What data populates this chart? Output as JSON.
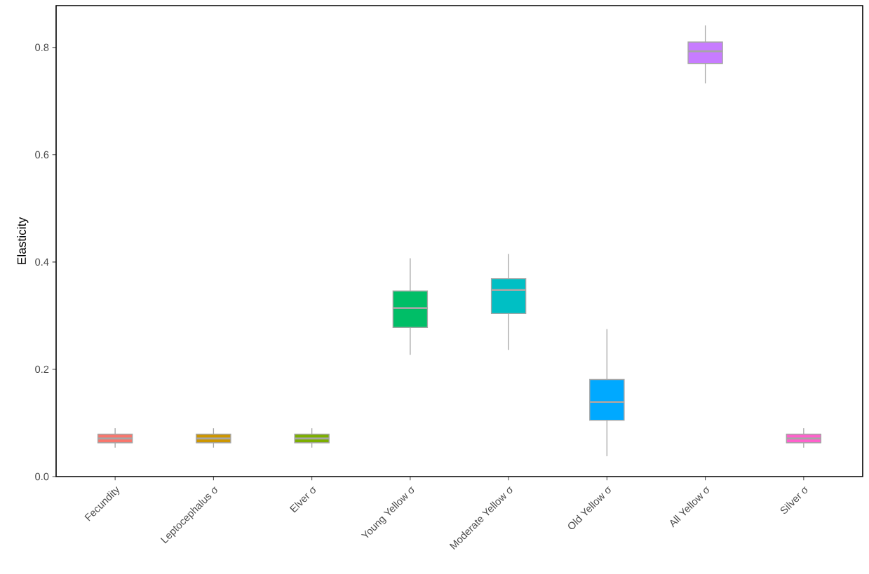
{
  "chart_data": {
    "type": "box",
    "ylabel": "Elasticity",
    "categories": [
      "Fecundity",
      "Leptocephalus σ",
      "Elver σ",
      "Young Yellow σ",
      "Moderate Yellow σ",
      "Old Yellow σ",
      "All Yellow σ",
      "Silver σ"
    ],
    "colors": [
      "#f8766d",
      "#cd9600",
      "#7cae00",
      "#00be67",
      "#00bfc4",
      "#00a9ff",
      "#c77cff",
      "#ff61cc"
    ],
    "boxes": [
      {
        "low": 0.054,
        "q1": 0.063,
        "median": 0.071,
        "q3": 0.079,
        "high": 0.09
      },
      {
        "low": 0.054,
        "q1": 0.063,
        "median": 0.071,
        "q3": 0.079,
        "high": 0.09
      },
      {
        "low": 0.054,
        "q1": 0.063,
        "median": 0.071,
        "q3": 0.079,
        "high": 0.09
      },
      {
        "low": 0.227,
        "q1": 0.278,
        "median": 0.314,
        "q3": 0.346,
        "high": 0.407
      },
      {
        "low": 0.236,
        "q1": 0.304,
        "median": 0.348,
        "q3": 0.369,
        "high": 0.415
      },
      {
        "low": 0.038,
        "q1": 0.105,
        "median": 0.139,
        "q3": 0.181,
        "high": 0.275
      },
      {
        "low": 0.733,
        "q1": 0.77,
        "median": 0.793,
        "q3": 0.81,
        "high": 0.841
      },
      {
        "low": 0.054,
        "q1": 0.063,
        "median": 0.071,
        "q3": 0.079,
        "high": 0.09
      }
    ],
    "ylim": [
      0,
      0.878
    ],
    "yticks": [
      {
        "value": 0,
        "label": "0.0"
      },
      {
        "value": 0.2,
        "label": "0.2"
      },
      {
        "value": 0.4,
        "label": "0.4"
      },
      {
        "value": 0.6,
        "label": "0.6"
      },
      {
        "value": 0.8,
        "label": "0.8"
      }
    ]
  }
}
